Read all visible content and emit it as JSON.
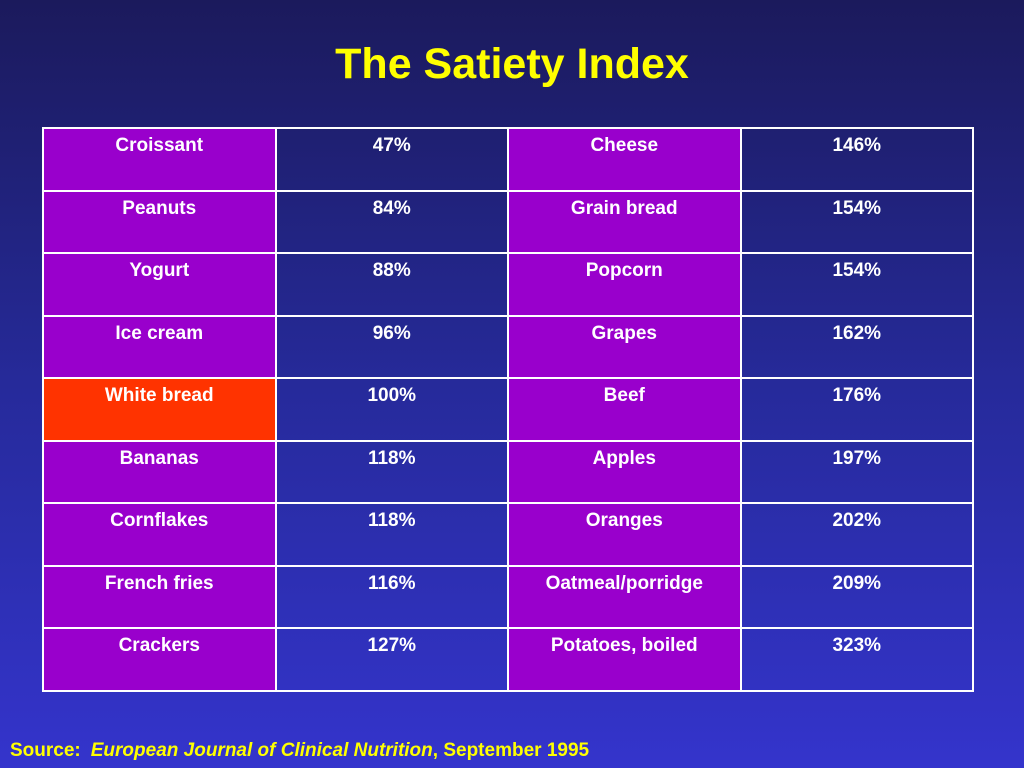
{
  "title": "The Satiety Index",
  "colors": {
    "food_cell": "#9900cc",
    "highlight_cell": "#ff3300",
    "title": "#ffff00"
  },
  "rows": [
    {
      "food1": "Croissant",
      "val1": "47%",
      "food2": "Cheese",
      "val2": "146%"
    },
    {
      "food1": "Peanuts",
      "val1": "84%",
      "food2": "Grain bread",
      "val2": "154%"
    },
    {
      "food1": "Yogurt",
      "val1": "88%",
      "food2": "Popcorn",
      "val2": "154%"
    },
    {
      "food1": "Ice cream",
      "val1": "96%",
      "food2": "Grapes",
      "val2": "162%"
    },
    {
      "food1": "White bread",
      "val1": "100%",
      "food2": "Beef",
      "val2": "176%",
      "highlight": true
    },
    {
      "food1": "Bananas",
      "val1": "118%",
      "food2": "Apples",
      "val2": "197%"
    },
    {
      "food1": "Cornflakes",
      "val1": "118%",
      "food2": "Oranges",
      "val2": "202%"
    },
    {
      "food1": "French fries",
      "val1": "116%",
      "food2": "Oatmeal/porridge",
      "val2": "209%"
    },
    {
      "food1": "Crackers",
      "val1": "127%",
      "food2": "Potatoes, boiled",
      "val2": "323%"
    }
  ],
  "source": {
    "label": "Source:",
    "journal": "European Journal of Clinical Nutrition",
    "date": ", September 1995"
  }
}
